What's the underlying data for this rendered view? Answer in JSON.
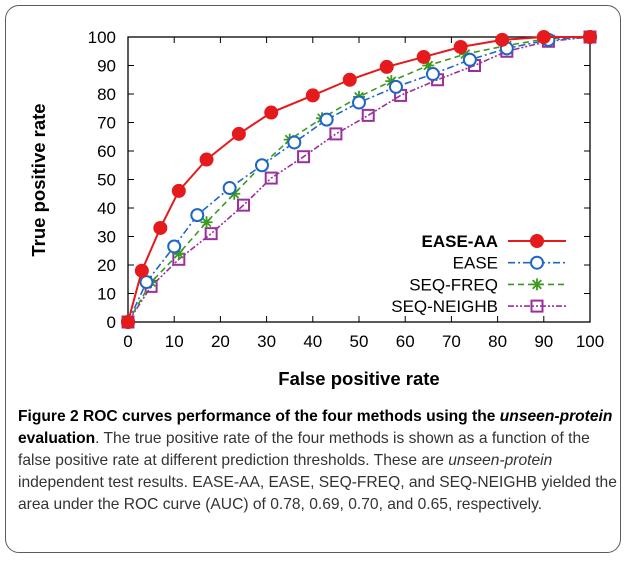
{
  "chart_data": {
    "type": "line",
    "xlabel": "False positive rate",
    "ylabel": "True positive rate",
    "xlim": [
      0,
      100
    ],
    "ylim": [
      0,
      100
    ],
    "xticks": [
      "0",
      "10",
      "20",
      "30",
      "40",
      "50",
      "60",
      "70",
      "80",
      "90",
      "100"
    ],
    "yticks": [
      "0",
      "10",
      "20",
      "30",
      "40",
      "50",
      "60",
      "70",
      "80",
      "90",
      "100"
    ],
    "grid": false,
    "legend_position": "bottom-right",
    "series": [
      {
        "name": "EASE-AA",
        "color": "#e41a1c",
        "marker": "filled-circle",
        "line": "solid",
        "bold_label": true,
        "points": [
          [
            0,
            0
          ],
          [
            3,
            18
          ],
          [
            7,
            33
          ],
          [
            11,
            46
          ],
          [
            17,
            57
          ],
          [
            24,
            66
          ],
          [
            31,
            73.5
          ],
          [
            40,
            79.5
          ],
          [
            48,
            85
          ],
          [
            56,
            89.5
          ],
          [
            64,
            93
          ],
          [
            72,
            96.5
          ],
          [
            81,
            99
          ],
          [
            90,
            100
          ],
          [
            100,
            100
          ]
        ]
      },
      {
        "name": "EASE",
        "color": "#1f67c6",
        "marker": "open-circle",
        "line": "dash-dot",
        "bold_label": false,
        "points": [
          [
            0,
            0
          ],
          [
            4,
            14
          ],
          [
            10,
            26.5
          ],
          [
            15,
            37.5
          ],
          [
            22,
            47
          ],
          [
            29,
            55
          ],
          [
            36,
            63
          ],
          [
            43,
            71
          ],
          [
            50,
            77
          ],
          [
            58,
            82.5
          ],
          [
            66,
            87
          ],
          [
            74,
            92
          ],
          [
            82,
            96
          ],
          [
            91,
            99
          ],
          [
            100,
            100
          ]
        ]
      },
      {
        "name": "SEQ-FREQ",
        "color": "#3c9a1e",
        "marker": "star",
        "line": "dashed",
        "bold_label": false,
        "points": [
          [
            0,
            0
          ],
          [
            5,
            14
          ],
          [
            11,
            24
          ],
          [
            17,
            35
          ],
          [
            23,
            45
          ],
          [
            29,
            55
          ],
          [
            35,
            64
          ],
          [
            42,
            71.5
          ],
          [
            50,
            79
          ],
          [
            57,
            84.5
          ],
          [
            65,
            90
          ],
          [
            73,
            94
          ],
          [
            82,
            97
          ],
          [
            91,
            99.5
          ],
          [
            100,
            100
          ]
        ]
      },
      {
        "name": "SEQ-NEIGHB",
        "color": "#9b2f9b",
        "marker": "open-square",
        "line": "dash-dot-dot",
        "bold_label": false,
        "points": [
          [
            0,
            0
          ],
          [
            5,
            12.5
          ],
          [
            11,
            22
          ],
          [
            18,
            31
          ],
          [
            25,
            41
          ],
          [
            31,
            50.5
          ],
          [
            38,
            58
          ],
          [
            45,
            66
          ],
          [
            52,
            72.5
          ],
          [
            59,
            79.5
          ],
          [
            67,
            85
          ],
          [
            75,
            90
          ],
          [
            82,
            95
          ],
          [
            91,
            98.5
          ],
          [
            100,
            100
          ]
        ]
      }
    ]
  },
  "caption": {
    "fig_label": "Figure 2",
    "title_part1": "ROC curves performance of the four methods using the",
    "title_italic": "unseen-protein",
    "title_part2": "evaluation",
    "text1": ". The true positive rate of the four methods is shown as a function of the false positive rate at different prediction thresholds. These are",
    "text_italic": "unseen-protein",
    "text2": "independent test results. EASE-AA, EASE, SEQ-FREQ, and SEQ-NEIGHB yielded the area under the ROC curve (AUC) of 0.78, 0.69, 0.70, and 0.65, respectively."
  }
}
